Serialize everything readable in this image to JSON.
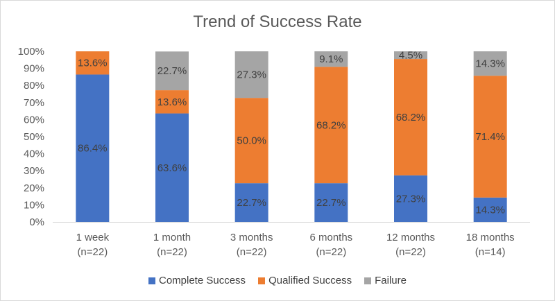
{
  "chart_data": {
    "type": "bar",
    "stacked": true,
    "title": "Trend of Success Rate",
    "categories": [
      [
        "1 week",
        "(n=22)"
      ],
      [
        "1 month",
        "(n=22)"
      ],
      [
        "3 months",
        "(n=22)"
      ],
      [
        "6 months",
        "(n=22)"
      ],
      [
        "12 months",
        "(n=22)"
      ],
      [
        "18 months",
        "(n=14)"
      ]
    ],
    "series": [
      {
        "name": "Complete Success",
        "color": "#4472c4",
        "values": [
          86.4,
          63.6,
          22.7,
          22.7,
          27.3,
          14.3
        ]
      },
      {
        "name": "Qualified Success",
        "color": "#ed7d31",
        "values": [
          13.6,
          13.6,
          50.0,
          68.2,
          68.2,
          71.4
        ]
      },
      {
        "name": "Failure",
        "color": "#a5a5a5",
        "values": [
          0,
          22.7,
          27.3,
          9.1,
          4.5,
          14.3
        ]
      }
    ],
    "ylim": [
      0,
      100
    ],
    "yticks": [
      "0%",
      "10%",
      "20%",
      "30%",
      "40%",
      "50%",
      "60%",
      "70%",
      "80%",
      "90%",
      "100%"
    ],
    "grid": false,
    "legend_position": "bottom"
  }
}
